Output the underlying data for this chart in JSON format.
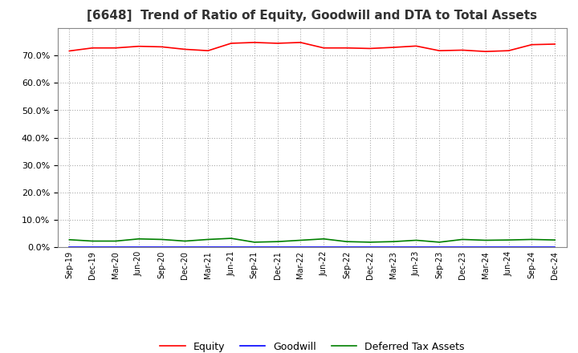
{
  "title": "[6648]  Trend of Ratio of Equity, Goodwill and DTA to Total Assets",
  "x_labels": [
    "Sep-19",
    "Dec-19",
    "Mar-20",
    "Jun-20",
    "Sep-20",
    "Dec-20",
    "Mar-21",
    "Jun-21",
    "Sep-21",
    "Dec-21",
    "Mar-22",
    "Jun-22",
    "Sep-22",
    "Dec-22",
    "Mar-23",
    "Jun-23",
    "Sep-23",
    "Dec-23",
    "Mar-24",
    "Jun-24",
    "Sep-24",
    "Dec-24"
  ],
  "equity": [
    0.717,
    0.728,
    0.728,
    0.734,
    0.732,
    0.723,
    0.718,
    0.745,
    0.748,
    0.745,
    0.748,
    0.728,
    0.728,
    0.726,
    0.73,
    0.735,
    0.718,
    0.72,
    0.715,
    0.718,
    0.74,
    0.742
  ],
  "goodwill": [
    0.0,
    0.0,
    0.0,
    0.0,
    0.0,
    0.0,
    0.0,
    0.0,
    0.0,
    0.0,
    0.0,
    0.0,
    0.0,
    0.0,
    0.0,
    0.0,
    0.0,
    0.0,
    0.0,
    0.0,
    0.0,
    0.0
  ],
  "dta": [
    0.027,
    0.022,
    0.022,
    0.03,
    0.028,
    0.022,
    0.028,
    0.032,
    0.018,
    0.02,
    0.025,
    0.03,
    0.02,
    0.018,
    0.02,
    0.025,
    0.018,
    0.028,
    0.025,
    0.026,
    0.028,
    0.026
  ],
  "equity_color": "#FF0000",
  "goodwill_color": "#0000FF",
  "dta_color": "#008000",
  "background_color": "#FFFFFF",
  "plot_bg_color": "#FFFFFF",
  "grid_color": "#AAAAAA",
  "ylim": [
    0.0,
    0.8
  ],
  "yticks": [
    0.0,
    0.1,
    0.2,
    0.3,
    0.4,
    0.5,
    0.6,
    0.7
  ],
  "title_fontsize": 11,
  "legend_labels": [
    "Equity",
    "Goodwill",
    "Deferred Tax Assets"
  ]
}
